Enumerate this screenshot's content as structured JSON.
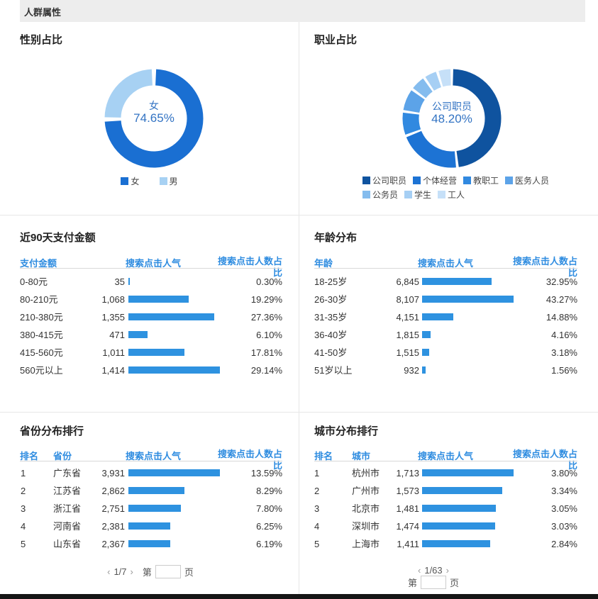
{
  "page": {
    "title": "人群属性"
  },
  "colors": {
    "bar": "#2e92e0",
    "table_header": "#2e8ce0",
    "donut_center_text": "#3273c3",
    "divider": "#e7e7e7",
    "top_band": "#ededed"
  },
  "gender_panel": {
    "title": "性别占比",
    "center_label": "女",
    "center_value": "74.65%",
    "segments": [
      {
        "label": "女",
        "pct": 74.65,
        "color": "#1a6fd2"
      },
      {
        "label": "男",
        "pct": 25.35,
        "color": "#a7d1f3"
      }
    ]
  },
  "occupation_panel": {
    "title": "职业占比",
    "center_label": "公司职员",
    "center_value": "48.20%",
    "segments": [
      {
        "label": "公司职员",
        "pct": 48.2,
        "color": "#0f539f"
      },
      {
        "label": "个体经营",
        "pct": 21.0,
        "color": "#1d73d4"
      },
      {
        "label": "教职工",
        "pct": 8.1,
        "color": "#3189e0"
      },
      {
        "label": "医务人员",
        "pct": 7.8,
        "color": "#5ca3e8"
      },
      {
        "label": "公务员",
        "pct": 5.4,
        "color": "#84bcee"
      },
      {
        "label": "学生",
        "pct": 4.7,
        "color": "#a6cff4"
      },
      {
        "label": "工人",
        "pct": 4.8,
        "color": "#c6e0f8"
      }
    ]
  },
  "payment_panel": {
    "title": "近90天支付金额",
    "columns": [
      "支付金额",
      "搜索点击人气",
      "搜索点击人数占比"
    ],
    "rows": [
      {
        "label": "0-80元",
        "value": "35",
        "pct": "0.30%"
      },
      {
        "label": "80-210元",
        "value": "1,068",
        "pct": "19.29%"
      },
      {
        "label": "210-380元",
        "value": "1,355",
        "pct": "27.36%"
      },
      {
        "label": "380-415元",
        "value": "471",
        "pct": "6.10%"
      },
      {
        "label": "415-560元",
        "value": "1,011",
        "pct": "17.81%"
      },
      {
        "label": "560元以上",
        "value": "1,414",
        "pct": "29.14%"
      }
    ]
  },
  "age_panel": {
    "title": "年龄分布",
    "columns": [
      "年龄",
      "搜索点击人气",
      "搜索点击人数占比"
    ],
    "rows": [
      {
        "label": "18-25岁",
        "value": "6,845",
        "pct": "32.95%"
      },
      {
        "label": "26-30岁",
        "value": "8,107",
        "pct": "43.27%"
      },
      {
        "label": "31-35岁",
        "value": "4,151",
        "pct": "14.88%"
      },
      {
        "label": "36-40岁",
        "value": "1,815",
        "pct": "4.16%"
      },
      {
        "label": "41-50岁",
        "value": "1,515",
        "pct": "3.18%"
      },
      {
        "label": "51岁以上",
        "value": "932",
        "pct": "1.56%"
      }
    ]
  },
  "province_panel": {
    "title": "省份分布排行",
    "columns": [
      "排名",
      "省份",
      "搜索点击人气",
      "搜索点击人数占比"
    ],
    "rows": [
      {
        "rank": "1",
        "label": "广东省",
        "value": "3,931",
        "pct": "13.59%"
      },
      {
        "rank": "2",
        "label": "江苏省",
        "value": "2,862",
        "pct": "8.29%"
      },
      {
        "rank": "3",
        "label": "浙江省",
        "value": "2,751",
        "pct": "7.80%"
      },
      {
        "rank": "4",
        "label": "河南省",
        "value": "2,381",
        "pct": "6.25%"
      },
      {
        "rank": "5",
        "label": "山东省",
        "value": "2,367",
        "pct": "6.19%"
      }
    ],
    "pagination": {
      "prev": "‹",
      "page_info": "1/7",
      "next": "›",
      "jump_prefix": "第",
      "jump_suffix": "页",
      "input_value": ""
    }
  },
  "city_panel": {
    "title": "城市分布排行",
    "columns": [
      "排名",
      "城市",
      "搜索点击人气",
      "搜索点击人数占比"
    ],
    "rows": [
      {
        "rank": "1",
        "label": "杭州市",
        "value": "1,713",
        "pct": "3.80%"
      },
      {
        "rank": "2",
        "label": "广州市",
        "value": "1,573",
        "pct": "3.34%"
      },
      {
        "rank": "3",
        "label": "北京市",
        "value": "1,481",
        "pct": "3.05%"
      },
      {
        "rank": "4",
        "label": "深圳市",
        "value": "1,474",
        "pct": "3.03%"
      },
      {
        "rank": "5",
        "label": "上海市",
        "value": "1,411",
        "pct": "2.84%"
      }
    ],
    "pagination": {
      "prev": "‹",
      "page_info": "1/63",
      "next": "›",
      "jump_prefix": "第",
      "jump_suffix": "页",
      "input_value": ""
    }
  },
  "chart_data": [
    {
      "type": "pie",
      "title": "性别占比",
      "labels": [
        "女",
        "男"
      ],
      "values": [
        74.65,
        25.35
      ],
      "center_text": "女 74.65%",
      "legend_position": "bottom"
    },
    {
      "type": "pie",
      "title": "职业占比",
      "labels": [
        "公司职员",
        "个体经营",
        "教职工",
        "医务人员",
        "公务员",
        "学生",
        "工人"
      ],
      "values": [
        48.2,
        21.0,
        8.1,
        7.8,
        5.4,
        4.7,
        4.8
      ],
      "center_text": "公司职员 48.20%",
      "legend_position": "bottom"
    },
    {
      "type": "table",
      "title": "近90天支付金额",
      "columns": [
        "支付金额",
        "搜索点击人气",
        "搜索点击人数占比"
      ],
      "rows": [
        [
          "0-80元",
          35,
          "0.30%"
        ],
        [
          "80-210元",
          1068,
          "19.29%"
        ],
        [
          "210-380元",
          1355,
          "27.36%"
        ],
        [
          "380-415元",
          471,
          "6.10%"
        ],
        [
          "415-560元",
          1011,
          "17.81%"
        ],
        [
          "560元以上",
          1414,
          "29.14%"
        ]
      ]
    },
    {
      "type": "table",
      "title": "年龄分布",
      "columns": [
        "年龄",
        "搜索点击人气",
        "搜索点击人数占比"
      ],
      "rows": [
        [
          "18-25岁",
          6845,
          "32.95%"
        ],
        [
          "26-30岁",
          8107,
          "43.27%"
        ],
        [
          "31-35岁",
          4151,
          "14.88%"
        ],
        [
          "36-40岁",
          1815,
          "4.16%"
        ],
        [
          "41-50岁",
          1515,
          "3.18%"
        ],
        [
          "51岁以上",
          932,
          "1.56%"
        ]
      ]
    },
    {
      "type": "table",
      "title": "省份分布排行",
      "columns": [
        "排名",
        "省份",
        "搜索点击人气",
        "搜索点击人数占比"
      ],
      "rows": [
        [
          1,
          "广东省",
          3931,
          "13.59%"
        ],
        [
          2,
          "江苏省",
          2862,
          "8.29%"
        ],
        [
          3,
          "浙江省",
          2751,
          "7.80%"
        ],
        [
          4,
          "河南省",
          2381,
          "6.25%"
        ],
        [
          5,
          "山东省",
          2367,
          "6.19%"
        ]
      ]
    },
    {
      "type": "table",
      "title": "城市分布排行",
      "columns": [
        "排名",
        "城市",
        "搜索点击人气",
        "搜索点击人数占比"
      ],
      "rows": [
        [
          1,
          "杭州市",
          1713,
          "3.80%"
        ],
        [
          2,
          "广州市",
          1573,
          "3.34%"
        ],
        [
          3,
          "北京市",
          1481,
          "3.05%"
        ],
        [
          4,
          "深圳市",
          1474,
          "3.03%"
        ],
        [
          5,
          "上海市",
          1411,
          "2.84%"
        ]
      ]
    }
  ]
}
